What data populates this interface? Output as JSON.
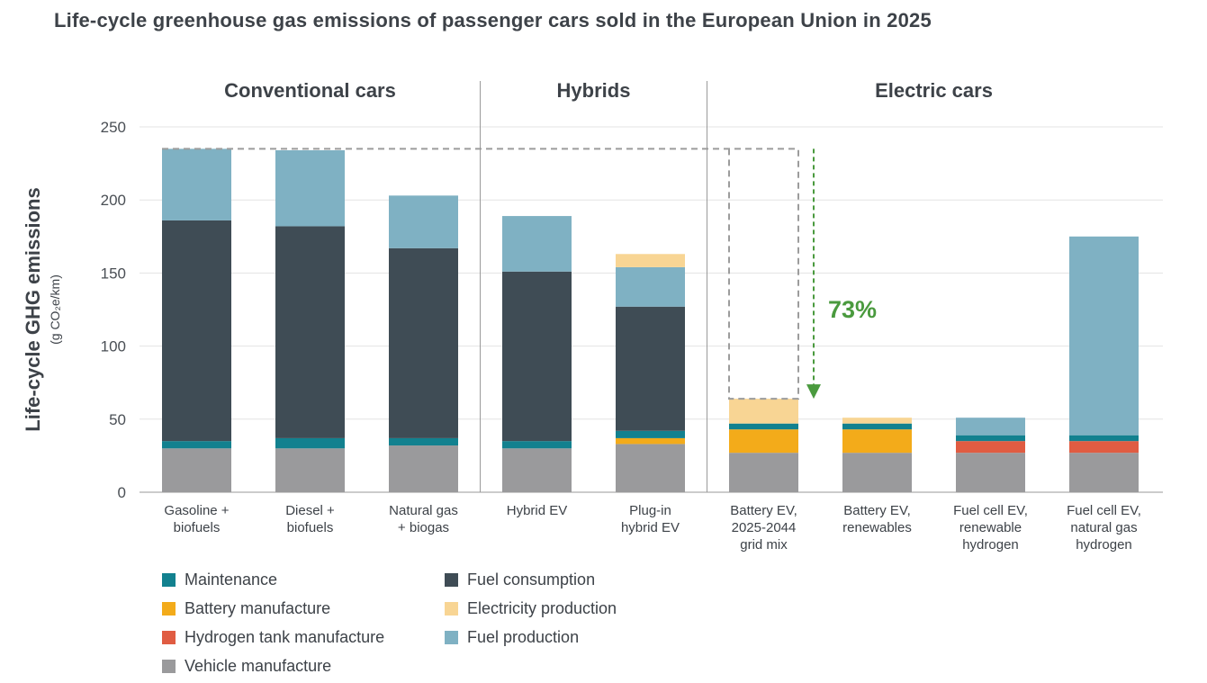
{
  "chart_data": {
    "type": "bar",
    "stacked": true,
    "title": "Life-cycle greenhouse gas emissions of passenger cars sold in the European Union in 2025",
    "ylabel": "Life-cycle GHG emissions",
    "ylabel_unit": "(g CO₂e/km)",
    "ylim": [
      0,
      250
    ],
    "yticks": [
      "0",
      "50",
      "100",
      "150",
      "200",
      "250"
    ],
    "groups": [
      {
        "label": "Conventional cars",
        "categories": [
          0,
          1,
          2
        ]
      },
      {
        "label": "Hybrids",
        "categories": [
          3,
          4
        ]
      },
      {
        "label": "Electric cars",
        "categories": [
          5,
          6,
          7,
          8
        ]
      }
    ],
    "categories": [
      [
        "Gasoline +",
        "biofuels"
      ],
      [
        "Diesel +",
        "biofuels"
      ],
      [
        "Natural gas",
        "+ biogas"
      ],
      [
        "Hybrid EV"
      ],
      [
        "Plug-in",
        "hybrid EV"
      ],
      [
        "Battery EV,",
        "2025-2044",
        "grid mix"
      ],
      [
        "Battery EV,",
        "renewables"
      ],
      [
        "Fuel cell EV,",
        "renewable",
        "hydrogen"
      ],
      [
        "Fuel cell EV,",
        "natural gas",
        "hydrogen"
      ]
    ],
    "series": [
      {
        "name": "Vehicle manufacture",
        "color": "#9a9a9c",
        "values": [
          30,
          30,
          32,
          30,
          33,
          27,
          27,
          27,
          27
        ]
      },
      {
        "name": "Hydrogen tank manufacture",
        "color": "#e05c42",
        "values": [
          0,
          0,
          0,
          0,
          0,
          0,
          0,
          8,
          8
        ]
      },
      {
        "name": "Battery manufacture",
        "color": "#f3ab1a",
        "values": [
          0,
          0,
          0,
          0,
          4,
          16,
          16,
          0,
          0
        ]
      },
      {
        "name": "Maintenance",
        "color": "#12818f",
        "values": [
          5,
          7,
          5,
          5,
          5,
          4,
          4,
          4,
          4
        ]
      },
      {
        "name": "Fuel consumption",
        "color": "#3f4c55",
        "values": [
          151,
          145,
          130,
          116,
          85,
          0,
          0,
          0,
          0
        ]
      },
      {
        "name": "Fuel production",
        "color": "#7fb1c3",
        "values": [
          49,
          52,
          36,
          38,
          27,
          0,
          0,
          12,
          136
        ]
      },
      {
        "name": "Electricity production",
        "color": "#f8d594",
        "values": [
          0,
          0,
          0,
          0,
          9,
          17,
          4,
          0,
          0
        ]
      }
    ],
    "annotation": {
      "text": "73%",
      "color": "#4a9a3e",
      "from_value": 235,
      "to_value": 64
    }
  },
  "legend": [
    {
      "name": "Maintenance",
      "color": "#12818f"
    },
    {
      "name": "Fuel consumption",
      "color": "#3f4c55"
    },
    {
      "name": "Battery manufacture",
      "color": "#f3ab1a"
    },
    {
      "name": "Electricity production",
      "color": "#f8d594"
    },
    {
      "name": "Hydrogen tank manufacture",
      "color": "#e05c42"
    },
    {
      "name": "Fuel production",
      "color": "#7fb1c3"
    },
    {
      "name": "Vehicle manufacture",
      "color": "#9a9a9c"
    }
  ]
}
